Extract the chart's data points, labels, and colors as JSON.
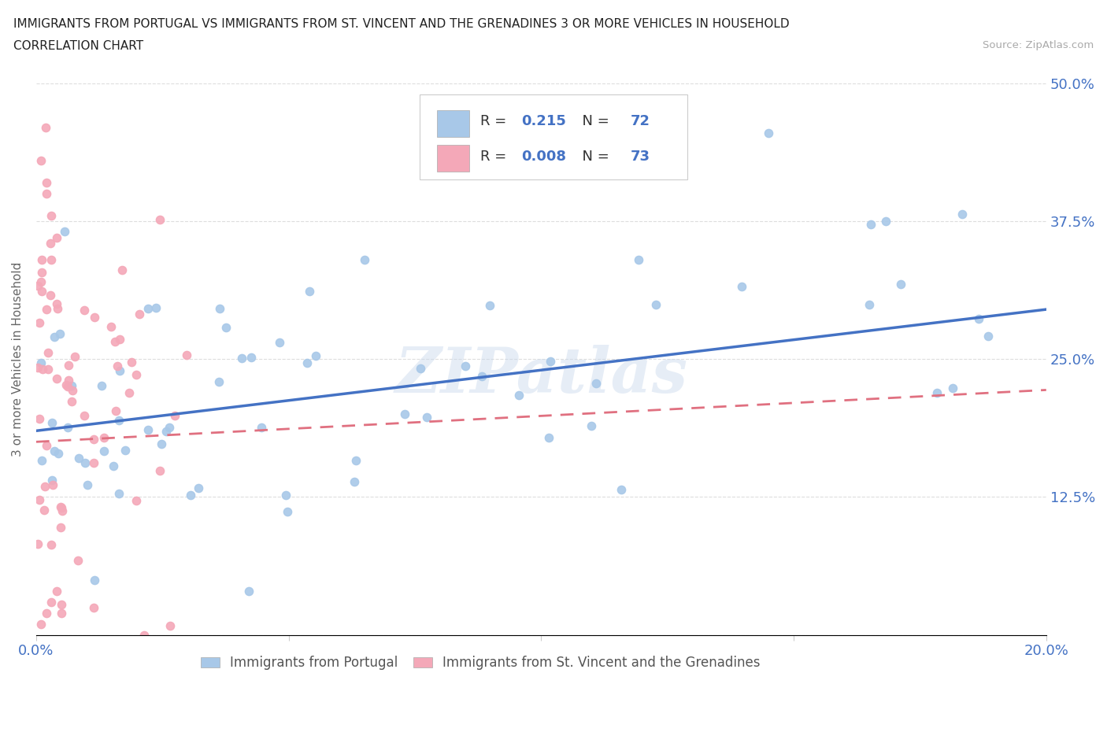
{
  "title_line1": "IMMIGRANTS FROM PORTUGAL VS IMMIGRANTS FROM ST. VINCENT AND THE GRENADINES 3 OR MORE VEHICLES IN HOUSEHOLD",
  "title_line2": "CORRELATION CHART",
  "source_text": "Source: ZipAtlas.com",
  "ylabel": "3 or more Vehicles in Household",
  "legend_label1": "Immigrants from Portugal",
  "legend_label2": "Immigrants from St. Vincent and the Grenadines",
  "R1": 0.215,
  "N1": 72,
  "R2": 0.008,
  "N2": 73,
  "color1": "#a8c8e8",
  "color2": "#f4a8b8",
  "line1_color": "#4472c4",
  "line2_color": "#e07080",
  "xmin": 0.0,
  "xmax": 0.2,
  "ymin": 0.0,
  "ymax": 0.5,
  "watermark": "ZIPatlas",
  "background_color": "#ffffff",
  "grid_color": "#dddddd",
  "tick_color": "#4472c4"
}
